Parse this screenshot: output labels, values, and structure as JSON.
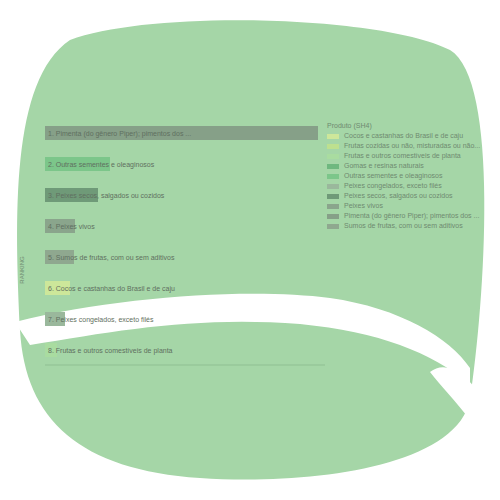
{
  "chart_data": {
    "type": "bar",
    "orientation": "horizontal",
    "stacked": true,
    "y_label": "RANKING",
    "legend_title": "Produto (SH4)",
    "legend": "right",
    "tick_labels": "y",
    "xlim": [
      0,
      280
    ],
    "categories": [
      "1. Pimenta (do gênero Piper); pimentos dos ...",
      "2. Outras sementes e oleaginosos",
      "3. Peixes secos, salgados ou cozidos",
      "4. Peixes vivos",
      "5. Sumos de frutas, com ou sem aditivos",
      "6. Cocos e castanhas do Brasil e de caju",
      "7. Peixes congelados, exceto filés",
      "8. Frutas e outros comestíveis de planta"
    ],
    "series": [
      {
        "name": "Cocos e castanhas do Brasil e de caju",
        "color": "#cde79a",
        "values": [
          null,
          null,
          null,
          null,
          null,
          25,
          null,
          null
        ]
      },
      {
        "name": "Frutas cozidas ou não, misturadas ou não...",
        "color": "#bde08f",
        "values": [
          null,
          null,
          null,
          null,
          null,
          null,
          null,
          null
        ]
      },
      {
        "name": "Frutas e outros comestíveis de planta",
        "color": "#a9dca0",
        "values": [
          null,
          null,
          null,
          null,
          null,
          null,
          null,
          12
        ]
      },
      {
        "name": "Gomas e resinas naturais",
        "color": "#6fb87f",
        "values": [
          null,
          null,
          null,
          null,
          null,
          null,
          null,
          null
        ]
      },
      {
        "name": "Outras sementes e oleaginosos",
        "color": "#7cc68a",
        "values": [
          null,
          65,
          null,
          null,
          null,
          null,
          null,
          null
        ]
      },
      {
        "name": "Peixes congelados, exceto filés",
        "color": "#9ab89c",
        "values": [
          null,
          null,
          null,
          null,
          null,
          null,
          20,
          null
        ]
      },
      {
        "name": "Peixes secos, salgados ou cozidos",
        "color": "#6f9a78",
        "values": [
          null,
          null,
          53,
          null,
          null,
          null,
          null,
          null
        ]
      },
      {
        "name": "Peixes vivos",
        "color": "#8aa58c",
        "values": [
          null,
          null,
          null,
          30,
          null,
          null,
          null,
          null
        ]
      },
      {
        "name": "Pimenta (do gênero Piper); pimentos dos ...",
        "color": "#86a088",
        "values": [
          273,
          null,
          null,
          null,
          null,
          null,
          null,
          null
        ]
      },
      {
        "name": "Sumos de frutas, com ou sem aditivos",
        "color": "#8fa88f",
        "values": [
          null,
          null,
          null,
          null,
          29,
          null,
          null,
          null
        ]
      }
    ]
  }
}
